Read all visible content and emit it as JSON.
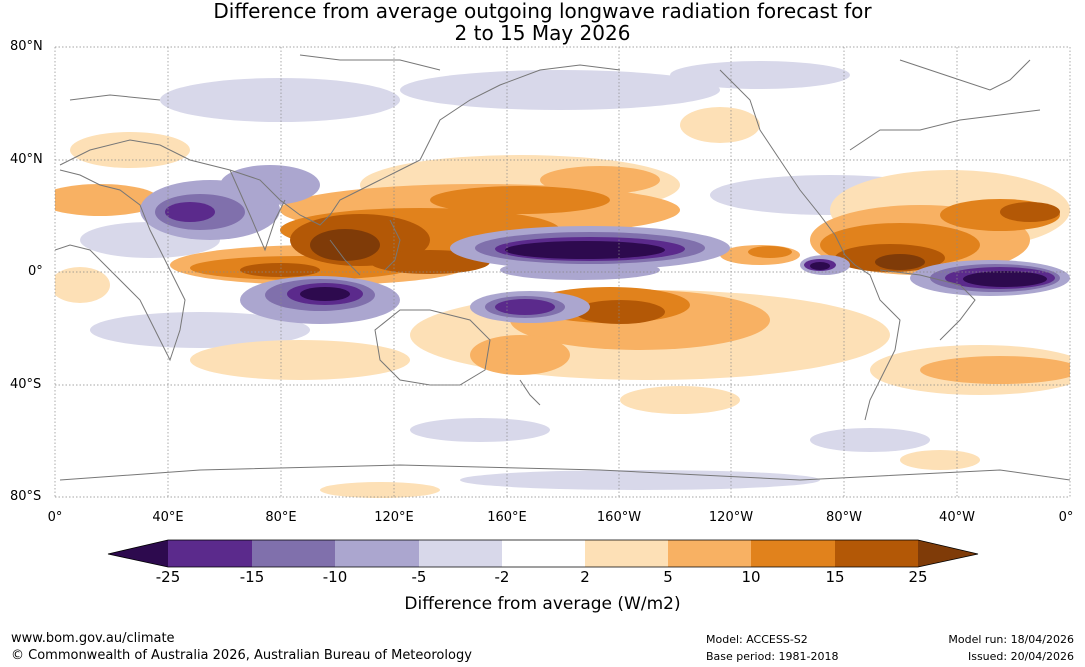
{
  "title": {
    "line1": "Difference from average outgoing longwave radiation forecast for",
    "line2": "2 to 15 May 2026"
  },
  "lat_labels": [
    "80°N",
    "40°N",
    "0°",
    "40°S",
    "80°S"
  ],
  "lon_labels": [
    "0°",
    "40°E",
    "80°E",
    "120°E",
    "160°E",
    "160°W",
    "120°W",
    "80°W",
    "40°W",
    "0°"
  ],
  "colorbar": {
    "ticks": [
      "-25",
      "-15",
      "-10",
      "-5",
      "-2",
      "2",
      "5",
      "10",
      "15",
      "25"
    ],
    "label": "Difference from average (W/m2)",
    "colors": [
      "#2d0a4e",
      "#5b2a8c",
      "#8070ac",
      "#aba6cf",
      "#d8d8ea",
      "#ffffff",
      "#fde0b6",
      "#f8b163",
      "#e1821c",
      "#b35806",
      "#7f3b08"
    ]
  },
  "footer": {
    "url": "www.bom.gov.au/climate",
    "copyright": "© Commonwealth of Australia 2026, Australian Bureau of Meteorology",
    "model": "Model: ACCESS-S2",
    "base_period": "Base period: 1981-2018",
    "model_run": "Model run: 18/04/2026",
    "issued": "Issued: 20/04/2026"
  }
}
